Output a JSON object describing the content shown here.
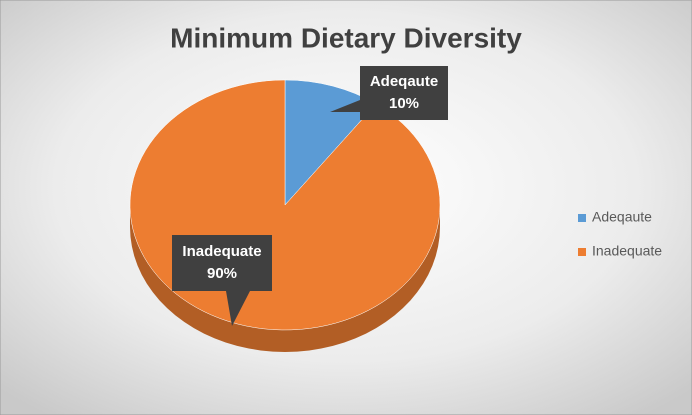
{
  "chart_data": {
    "type": "pie",
    "title": "Minimum Dietary Diversity",
    "categories": [
      "Adeqaute",
      "Inadequate"
    ],
    "values": [
      10,
      90
    ],
    "value_labels": [
      "10%",
      "90%"
    ],
    "colors": [
      "#5b9bd5",
      "#ed7d31"
    ],
    "legend": "right"
  }
}
